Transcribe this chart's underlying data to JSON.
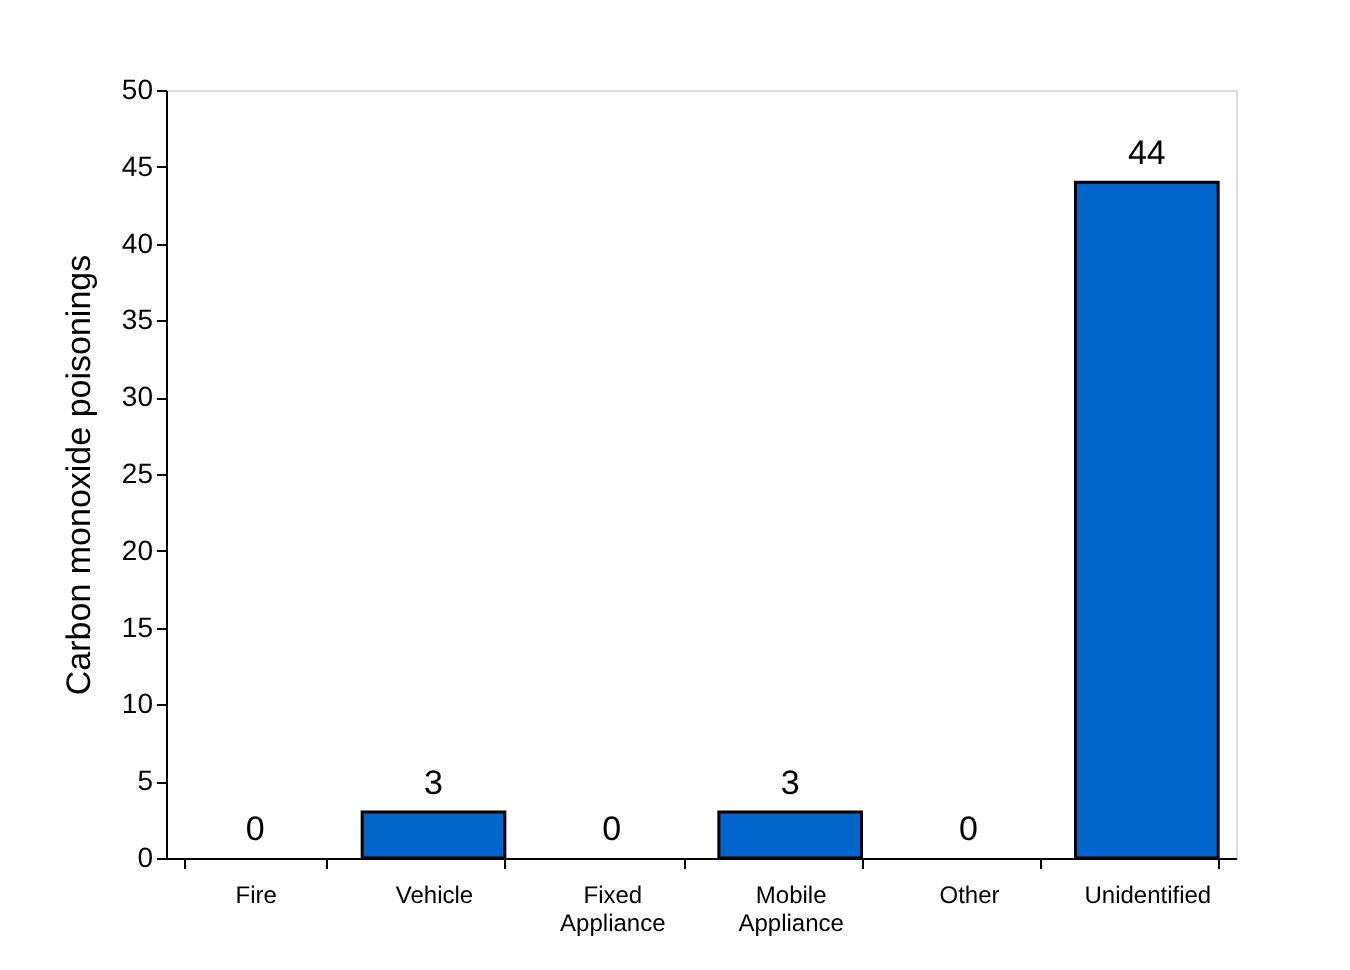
{
  "chart_data": {
    "type": "bar",
    "ylabel": "Carbon monoxide poisonings",
    "categories": [
      "Fire",
      "Vehicle",
      "Fixed Appliance",
      "Mobile Appliance",
      "Other",
      "Unidentified"
    ],
    "values": [
      0,
      3,
      0,
      3,
      0,
      44
    ],
    "color": "#0066cc",
    "ylim": [
      0,
      50
    ],
    "yticks": [
      0,
      5,
      10,
      15,
      20,
      25,
      30,
      35,
      40,
      45,
      50
    ],
    "grid": false,
    "data_labels": true
  }
}
